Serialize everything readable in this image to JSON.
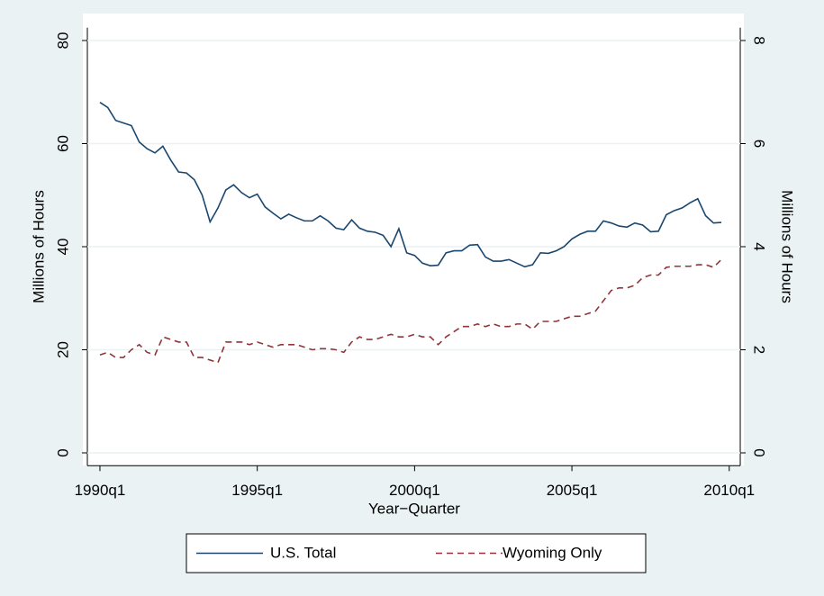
{
  "chart_data": {
    "type": "line",
    "xlabel": "Year−Quarter",
    "ylabel": "Millions of Hours",
    "y2label": "Millions of Hours",
    "x": [
      1990,
      1990.25,
      1990.5,
      1990.75,
      1991,
      1991.25,
      1991.5,
      1991.75,
      1992,
      1992.25,
      1992.5,
      1992.75,
      1993,
      1993.25,
      1993.5,
      1993.75,
      1994,
      1994.25,
      1994.5,
      1994.75,
      1995,
      1995.25,
      1995.5,
      1995.75,
      1996,
      1996.25,
      1996.5,
      1996.75,
      1997,
      1997.25,
      1997.5,
      1997.75,
      1998,
      1998.25,
      1998.5,
      1998.75,
      1999,
      1999.25,
      1999.5,
      1999.75,
      2000,
      2000.25,
      2000.5,
      2000.75,
      2001,
      2001.25,
      2001.5,
      2001.75,
      2002,
      2002.25,
      2002.5,
      2002.75,
      2003,
      2003.25,
      2003.5,
      2003.75,
      2004,
      2004.25,
      2004.5,
      2004.75,
      2005,
      2005.25,
      2005.5,
      2005.75,
      2006,
      2006.25,
      2006.5,
      2006.75,
      2007,
      2007.25,
      2007.5,
      2007.75,
      2008,
      2008.25,
      2008.5,
      2008.75,
      2009,
      2009.25,
      2009.5,
      2009.75
    ],
    "xlim": [
      1989.6,
      2010.35
    ],
    "xticks": [
      {
        "value": 1990,
        "label": "1990q1"
      },
      {
        "value": 1995,
        "label": "1995q1"
      },
      {
        "value": 2000,
        "label": "2000q1"
      },
      {
        "value": 2005,
        "label": "2005q1"
      },
      {
        "value": 2010,
        "label": "2010q1"
      }
    ],
    "ylim": [
      -2.5,
      82.5
    ],
    "yticks": [
      0,
      20,
      40,
      60,
      80
    ],
    "y2lim": [
      -0.25,
      8.25
    ],
    "y2ticks": [
      0,
      2,
      4,
      6,
      8
    ],
    "grid": true,
    "legend": "bottom",
    "series": [
      {
        "name": "U.S. Total",
        "color": "#1a476f",
        "dash": false,
        "values": [
          68,
          67,
          64.5,
          64,
          63.5,
          60.3,
          59,
          58.2,
          59.5,
          56.8,
          54.5,
          54.3,
          53,
          50,
          44.8,
          47.5,
          51,
          52,
          50.5,
          49.5,
          50.2,
          47.7,
          46.5,
          45.4,
          46.3,
          45.6,
          45,
          45,
          46,
          45,
          43.6,
          43.3,
          45.2,
          43.6,
          43,
          42.8,
          42.2,
          40,
          43.5,
          38.8,
          38.3,
          36.8,
          36.3,
          36.4,
          38.8,
          39.2,
          39.2,
          40.3,
          40.4,
          38,
          37.2,
          37.2,
          37.5,
          36.8,
          36.1,
          36.5,
          38.8,
          38.7,
          39.2,
          40,
          41.5,
          42.4,
          43,
          43,
          45,
          44.6,
          44,
          43.8,
          44.6,
          44.2,
          42.9,
          43,
          46.2,
          47,
          47.5,
          48.5,
          49.3,
          46,
          44.6,
          44.7
        ]
      },
      {
        "name": "Wyoming Only",
        "color": "#90353b",
        "dash": true,
        "axis": "y2",
        "values": [
          1.9,
          1.95,
          1.85,
          1.85,
          2.0,
          2.1,
          1.95,
          1.9,
          2.25,
          2.2,
          2.15,
          2.15,
          1.85,
          1.85,
          1.8,
          1.75,
          2.15,
          2.15,
          2.15,
          2.1,
          2.15,
          2.1,
          2.05,
          2.1,
          2.1,
          2.1,
          2.05,
          2.0,
          2.02,
          2.02,
          2.0,
          1.95,
          2.15,
          2.25,
          2.2,
          2.2,
          2.25,
          2.3,
          2.25,
          2.25,
          2.3,
          2.25,
          2.25,
          2.1,
          2.25,
          2.35,
          2.45,
          2.45,
          2.5,
          2.45,
          2.5,
          2.45,
          2.45,
          2.5,
          2.5,
          2.4,
          2.55,
          2.55,
          2.55,
          2.6,
          2.65,
          2.65,
          2.7,
          2.75,
          2.95,
          3.15,
          3.2,
          3.2,
          3.25,
          3.4,
          3.45,
          3.45,
          3.6,
          3.62,
          3.62,
          3.62,
          3.65,
          3.65,
          3.6,
          3.75
        ]
      }
    ]
  }
}
